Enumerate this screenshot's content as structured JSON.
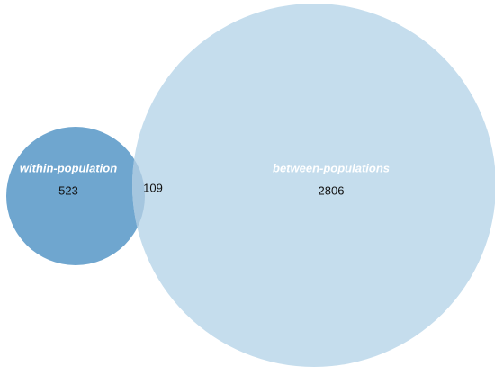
{
  "chart_data": {
    "type": "venn",
    "sets": [
      {
        "name": "within-population",
        "value": 523,
        "color": "#6fa6cf"
      },
      {
        "name": "between-populations",
        "value": 2806,
        "color": "#c5dded"
      }
    ],
    "intersection": {
      "value": 109,
      "color": "#a5c6df"
    }
  }
}
